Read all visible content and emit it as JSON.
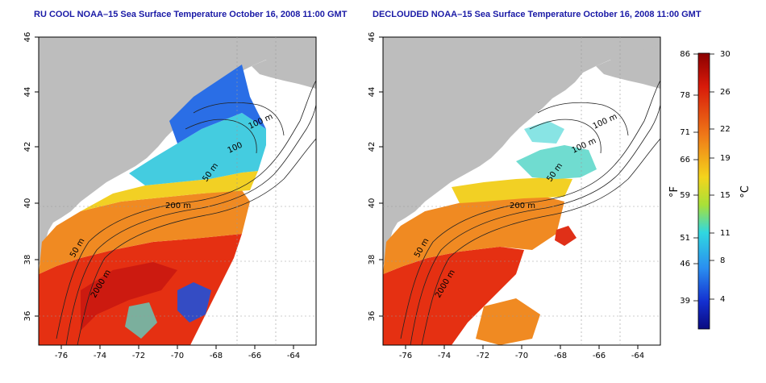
{
  "panels": [
    {
      "title": "RU COOL NOAA–15 Sea Surface Temperature October 16, 2008 11:00 GMT",
      "x_ticks": [
        "-76",
        "-74",
        "-72",
        "-70",
        "-68",
        "-66",
        "-64"
      ],
      "y_ticks": [
        "46",
        "44",
        "42",
        "40",
        "38",
        "36"
      ],
      "depth_labels": [
        "100 m",
        "100",
        "50 m",
        "200 m",
        "50 m",
        "2000 m"
      ]
    },
    {
      "title": "DECLOUDED NOAA–15 Sea Surface Temperature October 16, 2008 11:00 GMT",
      "x_ticks": [
        "-76",
        "-74",
        "-72",
        "-70",
        "-68",
        "-66",
        "-64"
      ],
      "y_ticks": [
        "46",
        "44",
        "42",
        "40",
        "38",
        "36"
      ],
      "depth_labels": [
        "100 m",
        "100 m",
        "50 m",
        "200 m",
        "50 m",
        "2000 m"
      ]
    }
  ],
  "colorbar": {
    "fahrenheit_ticks": [
      "86",
      "78",
      "71",
      "66",
      "59",
      "51",
      "46",
      "39"
    ],
    "celsius_ticks": [
      "30",
      "26",
      "22",
      "19",
      "15",
      "11",
      "8",
      "4"
    ],
    "left_unit": "°F",
    "right_unit": "°C"
  },
  "colors": {
    "land": "#bdbdbd",
    "warm": "#e03010",
    "orange": "#f08a20",
    "yellow": "#f0d020",
    "cyan": "#40d0e0",
    "blue": "#2060e0",
    "title": "#1a1aa6"
  }
}
